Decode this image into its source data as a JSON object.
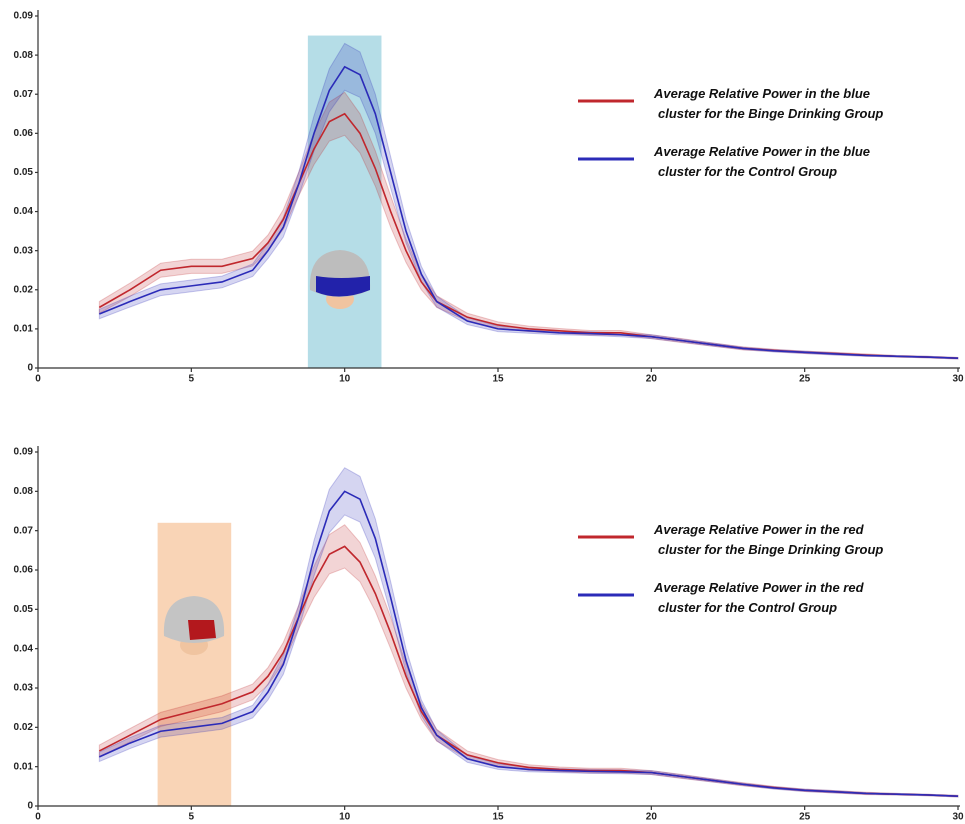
{
  "chart_data": [
    {
      "type": "line",
      "x": [
        2,
        3,
        4,
        5,
        6,
        7,
        7.5,
        8,
        8.5,
        9,
        9.5,
        10,
        10.5,
        11,
        11.5,
        12,
        12.5,
        13,
        14,
        15,
        16,
        17,
        18,
        19,
        20,
        21,
        22,
        23,
        24,
        25,
        26,
        27,
        28,
        29,
        30
      ],
      "series": [
        {
          "name": "Average Relative Power in the blue cluster for the Binge Drinking Group",
          "color": "#c0272d",
          "values": [
            0.0155,
            0.02,
            0.025,
            0.026,
            0.026,
            0.028,
            0.032,
            0.038,
            0.047,
            0.056,
            0.063,
            0.065,
            0.06,
            0.051,
            0.04,
            0.03,
            0.022,
            0.017,
            0.013,
            0.011,
            0.01,
            0.0095,
            0.009,
            0.009,
            0.008,
            0.007,
            0.006,
            0.005,
            0.0045,
            0.004,
            0.0037,
            0.0033,
            0.003,
            0.0028,
            0.0025
          ],
          "error": [
            0.0015,
            0.0017,
            0.0018,
            0.0018,
            0.0018,
            0.0019,
            0.002,
            0.0025,
            0.003,
            0.004,
            0.005,
            0.0055,
            0.005,
            0.0045,
            0.004,
            0.003,
            0.002,
            0.0015,
            0.001,
            0.0008,
            0.0007,
            0.0006,
            0.0006,
            0.0006,
            0.0005,
            0.0005,
            0.0004,
            0.0004,
            0.0003,
            0.0003,
            0.0003,
            0.0003,
            0.0002,
            0.0002,
            0.0002
          ]
        },
        {
          "name": "Average Relative Power in the blue cluster for the Control Group",
          "color": "#2b2bb8",
          "values": [
            0.0138,
            0.017,
            0.02,
            0.021,
            0.022,
            0.025,
            0.03,
            0.036,
            0.047,
            0.06,
            0.071,
            0.077,
            0.075,
            0.065,
            0.05,
            0.035,
            0.024,
            0.017,
            0.012,
            0.01,
            0.0095,
            0.009,
            0.0088,
            0.0085,
            0.008,
            0.007,
            0.006,
            0.005,
            0.0044,
            0.004,
            0.0036,
            0.0032,
            0.003,
            0.0028,
            0.0025
          ],
          "error": [
            0.0012,
            0.0014,
            0.0015,
            0.0015,
            0.0015,
            0.0016,
            0.002,
            0.0025,
            0.003,
            0.0045,
            0.0055,
            0.006,
            0.0058,
            0.005,
            0.004,
            0.003,
            0.002,
            0.0014,
            0.0009,
            0.0007,
            0.0006,
            0.0005,
            0.0005,
            0.0005,
            0.0005,
            0.0004,
            0.0004,
            0.0003,
            0.0003,
            0.0003,
            0.0003,
            0.0002,
            0.0002,
            0.0002,
            0.0002
          ]
        }
      ],
      "xlim": [
        0,
        30
      ],
      "xticks": [
        0,
        5,
        10,
        15,
        20,
        25,
        30
      ],
      "ylim": [
        0,
        0.09
      ],
      "yticks": [
        0,
        0.01,
        0.02,
        0.03,
        0.04,
        0.05,
        0.06,
        0.07,
        0.08,
        0.09
      ],
      "highlight": {
        "x": [
          8.8,
          11.2
        ],
        "y": 0.085,
        "color": "#b5dde7"
      },
      "legend": "upper right",
      "grid": false
    },
    {
      "type": "line",
      "x": [
        2,
        3,
        4,
        5,
        6,
        7,
        7.5,
        8,
        8.5,
        9,
        9.5,
        10,
        10.5,
        11,
        11.5,
        12,
        12.5,
        13,
        14,
        15,
        16,
        17,
        18,
        19,
        20,
        21,
        22,
        23,
        24,
        25,
        26,
        27,
        28,
        29,
        30
      ],
      "series": [
        {
          "name": "Average Relative Power in the red cluster for the Binge Drinking Group",
          "color": "#c0272d",
          "values": [
            0.014,
            0.018,
            0.022,
            0.024,
            0.026,
            0.029,
            0.033,
            0.039,
            0.048,
            0.057,
            0.064,
            0.066,
            0.062,
            0.054,
            0.044,
            0.033,
            0.024,
            0.018,
            0.013,
            0.011,
            0.0098,
            0.0093,
            0.009,
            0.009,
            0.0085,
            0.0075,
            0.0065,
            0.0055,
            0.0047,
            0.004,
            0.0036,
            0.0032,
            0.003,
            0.0028,
            0.0025
          ],
          "error": [
            0.0015,
            0.0017,
            0.0018,
            0.0019,
            0.002,
            0.002,
            0.0022,
            0.0026,
            0.003,
            0.004,
            0.005,
            0.0055,
            0.005,
            0.0045,
            0.004,
            0.003,
            0.002,
            0.0015,
            0.001,
            0.0008,
            0.0007,
            0.0006,
            0.0006,
            0.0006,
            0.0005,
            0.0005,
            0.0004,
            0.0004,
            0.0003,
            0.0003,
            0.0003,
            0.0003,
            0.0002,
            0.0002,
            0.0002
          ]
        },
        {
          "name": "Average Relative Power in the red cluster for the Control Group",
          "color": "#2b2bb8",
          "values": [
            0.0125,
            0.016,
            0.019,
            0.02,
            0.021,
            0.024,
            0.029,
            0.036,
            0.048,
            0.063,
            0.075,
            0.08,
            0.078,
            0.068,
            0.053,
            0.037,
            0.025,
            0.018,
            0.012,
            0.01,
            0.0093,
            0.009,
            0.0088,
            0.0087,
            0.0085,
            0.0075,
            0.0065,
            0.0055,
            0.0046,
            0.004,
            0.0036,
            0.0032,
            0.003,
            0.0028,
            0.0025
          ],
          "error": [
            0.0012,
            0.0014,
            0.0015,
            0.0015,
            0.0015,
            0.0016,
            0.002,
            0.0025,
            0.003,
            0.0045,
            0.0055,
            0.006,
            0.0058,
            0.005,
            0.004,
            0.003,
            0.002,
            0.0014,
            0.0009,
            0.0007,
            0.0006,
            0.0005,
            0.0005,
            0.0005,
            0.0005,
            0.0004,
            0.0004,
            0.0003,
            0.0003,
            0.0003,
            0.0003,
            0.0002,
            0.0002,
            0.0002,
            0.0002
          ]
        }
      ],
      "xlim": [
        0,
        30
      ],
      "xticks": [
        0,
        5,
        10,
        15,
        20,
        25,
        30
      ],
      "ylim": [
        0,
        0.09
      ],
      "yticks": [
        0,
        0.01,
        0.02,
        0.03,
        0.04,
        0.05,
        0.06,
        0.07,
        0.08,
        0.09
      ],
      "highlight": {
        "x": [
          3.9,
          6.3
        ],
        "y": 0.072,
        "color": "#f9d4b6"
      },
      "legend": "upper right",
      "grid": false
    }
  ]
}
